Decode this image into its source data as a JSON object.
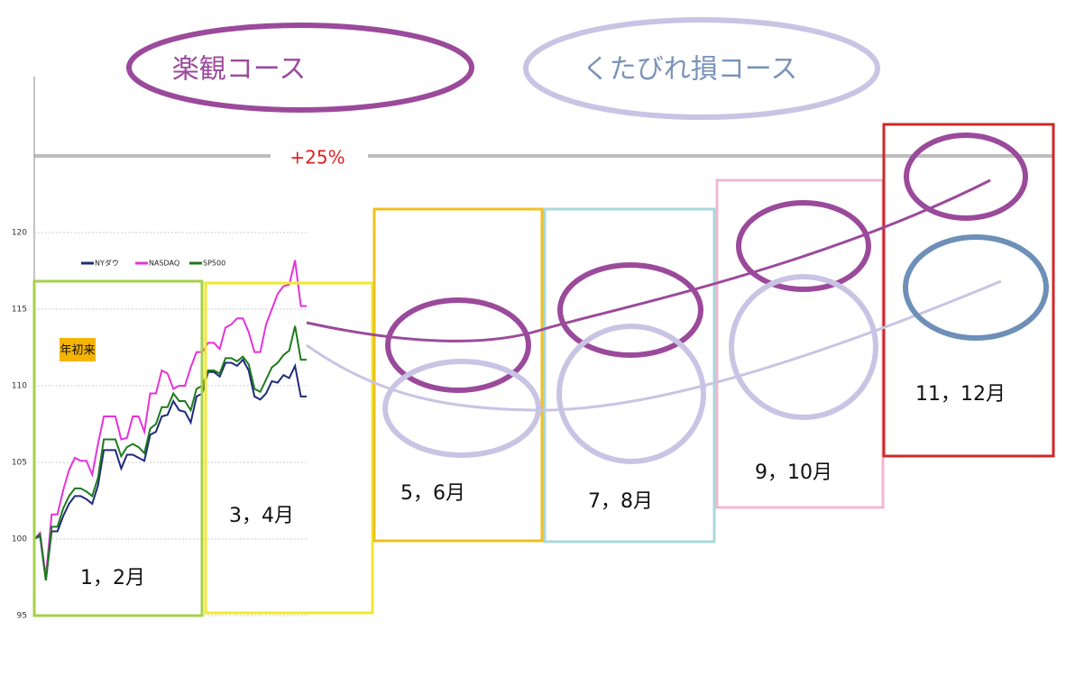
{
  "chart_data": {
    "type": "line",
    "courses": [
      {
        "name": "楽観コース",
        "color": "#9b4a9b"
      },
      {
        "name": "くたびれ損コース",
        "color": "#c9c4e4"
      }
    ],
    "target": {
      "value": 125,
      "label": "+25%"
    },
    "badge": "年初来",
    "periods": [
      "1，2月",
      "3，4月",
      "5，6月",
      "7，8月",
      "9，10月",
      "11，12月"
    ],
    "ylim": [
      95,
      130
    ],
    "yticks": [
      95,
      100,
      105,
      110,
      115,
      120
    ],
    "grid": true,
    "legend": "upper left",
    "series": [
      {
        "name": "NYダウ",
        "color": "#1f2a7a",
        "values": [
          100,
          100.2,
          97.3,
          100.5,
          100.5,
          101.5,
          102.3,
          102.8,
          102.8,
          102.6,
          102.3,
          103.5,
          105.8,
          105.8,
          105.8,
          104.6,
          105.5,
          105.5,
          105.3,
          105.1,
          106.8,
          107,
          108,
          108.1,
          109,
          108.4,
          108.3,
          107.6,
          109.3,
          109.5,
          110.9,
          110.9,
          110.6,
          111.5,
          111.5,
          111.3,
          111.7,
          111,
          109.3,
          109.1,
          109.5,
          110.3,
          110.2,
          110.7,
          110.5,
          111.3,
          109.3,
          109.3
        ]
      },
      {
        "name": "NASDAQ",
        "color": "#e632d8",
        "values": [
          100,
          100.4,
          97.5,
          101.6,
          101.6,
          103.2,
          104.5,
          105.3,
          105.1,
          105.1,
          104.2,
          106.2,
          108,
          108,
          108,
          106.5,
          106.6,
          108,
          108,
          107,
          109.5,
          109.5,
          111,
          110.8,
          109.8,
          110,
          110,
          111.2,
          112.2,
          112.2,
          112.8,
          112.8,
          112.4,
          113.8,
          114,
          114.4,
          114.4,
          113.5,
          112.2,
          112.2,
          114,
          115,
          116,
          116.5,
          116.6,
          118.2,
          115.2,
          115.2
        ]
      },
      {
        "name": "SP500",
        "color": "#1e7a1e",
        "values": [
          100,
          100.3,
          97.3,
          100.8,
          100.8,
          102,
          102.8,
          103.3,
          103.3,
          103.1,
          102.8,
          104,
          106.5,
          106.5,
          106.5,
          105.4,
          106,
          106.2,
          106,
          105.6,
          107.2,
          107.5,
          108.6,
          108.6,
          109.5,
          109,
          109,
          108.4,
          109.8,
          110,
          111,
          111,
          110.8,
          111.8,
          111.8,
          111.6,
          111.9,
          111.4,
          109.8,
          109.6,
          110.4,
          111.2,
          111.5,
          112,
          112.3,
          113.9,
          111.7,
          111.7
        ]
      }
    ]
  }
}
